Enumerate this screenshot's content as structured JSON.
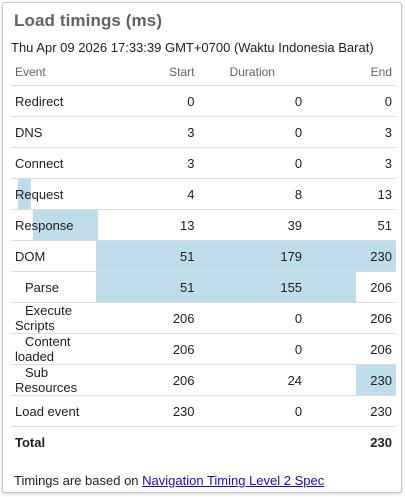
{
  "title": "Load timings (ms)",
  "timestamp": "Thu Apr 09 2026 17:33:39 GMT+0700 (Waktu Indonesia Barat)",
  "columns": {
    "event": "Event",
    "start": "Start",
    "duration": "Duration",
    "end": "End"
  },
  "rows": [
    {
      "event": "Redirect",
      "start": "0",
      "duration": "0",
      "end": "0",
      "indent": false
    },
    {
      "event": "DNS",
      "start": "3",
      "duration": "0",
      "end": "3",
      "indent": false
    },
    {
      "event": "Connect",
      "start": "3",
      "duration": "0",
      "end": "3",
      "indent": false
    },
    {
      "event": "Request",
      "start": "4",
      "duration": "8",
      "end": "13",
      "indent": false
    },
    {
      "event": "Response",
      "start": "13",
      "duration": "39",
      "end": "51",
      "indent": false
    },
    {
      "event": "DOM",
      "start": "51",
      "duration": "179",
      "end": "230",
      "indent": false
    },
    {
      "event": "Parse",
      "start": "51",
      "duration": "155",
      "end": "206",
      "indent": true
    },
    {
      "event": "Execute Scripts",
      "start": "206",
      "duration": "0",
      "end": "206",
      "indent": true
    },
    {
      "event": "Content loaded",
      "start": "206",
      "duration": "0",
      "end": "206",
      "indent": true
    },
    {
      "event": "Sub Resources",
      "start": "206",
      "duration": "24",
      "end": "230",
      "indent": true
    },
    {
      "event": "Load event",
      "start": "230",
      "duration": "0",
      "end": "230",
      "indent": false
    }
  ],
  "total": {
    "label": "Total",
    "end": "230"
  },
  "footer": {
    "text": "Timings are based on ",
    "link": "Navigation Timing Level 2 Spec"
  },
  "colors": {
    "bar": "#bedcea",
    "link": "#1a0dab"
  }
}
